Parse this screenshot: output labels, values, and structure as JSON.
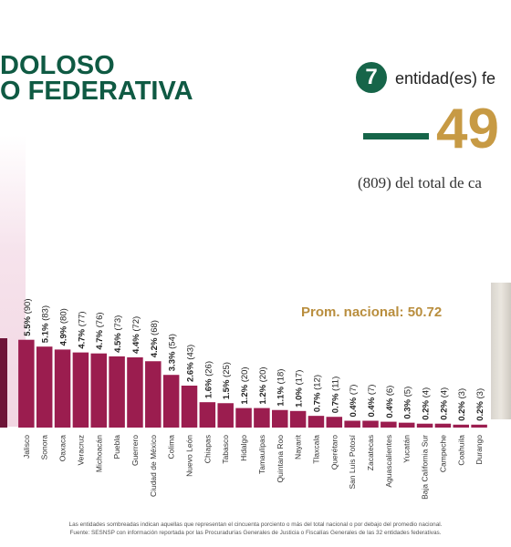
{
  "header": {
    "title_line1": "DOLOSO",
    "title_line2": "O FEDERATIVA"
  },
  "summary": {
    "count": "7",
    "count_text": "entidad(es) fe",
    "big_number": "49",
    "total_text": "(809) del total de ca"
  },
  "average_label": "Prom. nacional: 50.72",
  "footnotes": [
    "Las entidades sombreadas indican aquellas que representan el cincuenta porciento o más del total nacional o por debajo del promedio nacional.",
    "Fuente: SESNSP con información reportada por las Procuradurías Generales de Justicia o Fiscalías Generales de las 32 entidades federativas."
  ],
  "colors": {
    "bar": "#9b1d4f",
    "bar_dark": "#6e1438",
    "title_green": "#0f5a43",
    "gold": "#c79a44"
  },
  "chart_data": {
    "type": "bar",
    "categories": [
      "",
      "Jalisco",
      "Sonora",
      "Oaxaca",
      "Veracruz",
      "Michoacán",
      "Puebla",
      "Guerrero",
      "Ciudad de México",
      "Colima",
      "Nuevo León",
      "Chiapas",
      "Tabasco",
      "Hidalgo",
      "Tamaulipas",
      "Quintana Roo",
      "Nayarit",
      "Tlaxcala",
      "Querétaro",
      "San Luis Potosí",
      "Zacatecas",
      "Aguascalientes",
      "Yucatán",
      "Baja California Sur",
      "Campeche",
      "Coahuila",
      "Durango"
    ],
    "values": [
      null,
      90,
      83,
      80,
      77,
      76,
      73,
      72,
      68,
      54,
      43,
      26,
      25,
      20,
      20,
      18,
      17,
      12,
      11,
      7,
      7,
      6,
      5,
      4,
      4,
      3,
      3
    ],
    "labels": [
      "",
      "5.5% (90)",
      "5.1% (83)",
      "4.9% (80)",
      "4.7% (77)",
      "4.7% (76)",
      "4.5% (73)",
      "4.4% (72)",
      "4.2% (68)",
      "3.3% (54)",
      "2.6% (43)",
      "1.6% (26)",
      "1.5% (25)",
      "1.2% (20)",
      "1.2% (20)",
      "1.1% (18)",
      "1.0% (17)",
      "0.7% (12)",
      "0.7% (11)",
      "0.4% (7)",
      "0.4% (7)",
      "0.4% (6)",
      "0.3% (5)",
      "0.2% (4)",
      "0.2% (4)",
      "0.2% (3)",
      "0.2% (3)"
    ],
    "average": 50.72
  }
}
